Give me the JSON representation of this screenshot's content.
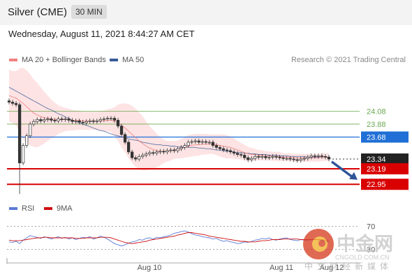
{
  "header": {
    "title": "Silver (CME)",
    "timeframe": "30 MIN"
  },
  "date_label": "Wednesday, August 11, 2021 8:44:27 AM CET",
  "legend": {
    "ma20": {
      "label": "MA 20 + Bollinger Bands",
      "color": "#f08080"
    },
    "ma50": {
      "label": "MA 50",
      "color": "#3a5a98"
    },
    "rsi": {
      "label": "RSI",
      "color": "#5b7bd5"
    },
    "ma9": {
      "label": "9MA",
      "color": "#cc1111"
    }
  },
  "research": "Research © 2021 Trading Central",
  "watermark": {
    "text": "中金网",
    "sub": "CNGOLD.COM.CN",
    "tagline": "中文财经新媒体"
  },
  "chart_data": {
    "type": "candlestick",
    "y_range": [
      22.78,
      24.72
    ],
    "x_labels": [
      "Aug 10",
      "Aug 11",
      "Aug 12"
    ],
    "levels": [
      {
        "label": "24.08",
        "value": 24.08,
        "kind": "target",
        "color": "#6aa84f"
      },
      {
        "label": "23.88",
        "value": 23.88,
        "kind": "target",
        "color": "#6aa84f"
      },
      {
        "label": "23.68",
        "value": 23.68,
        "kind": "pivot",
        "color": "#1f6fd6"
      },
      {
        "label": "23.34",
        "value": 23.34,
        "kind": "last",
        "color": "#333333"
      },
      {
        "label": "23.19",
        "value": 23.19,
        "kind": "support",
        "color": "#d90000"
      },
      {
        "label": "22.95",
        "value": 22.95,
        "kind": "support",
        "color": "#d90000"
      }
    ],
    "close": [
      24.22,
      24.2,
      24.18,
      23.28,
      23.55,
      23.7,
      23.88,
      23.92,
      23.95,
      23.93,
      23.95,
      23.96,
      23.94,
      23.93,
      23.96,
      23.95,
      23.96,
      23.94,
      23.92,
      23.93,
      23.91,
      23.9,
      23.92,
      23.93,
      23.92,
      23.93,
      23.95,
      23.96,
      23.97,
      23.97,
      23.94,
      23.85,
      23.72,
      23.6,
      23.45,
      23.36,
      23.34,
      23.38,
      23.4,
      23.42,
      23.44,
      23.43,
      23.45,
      23.46,
      23.45,
      23.47,
      23.48,
      23.47,
      23.5,
      23.52,
      23.55,
      23.6,
      23.61,
      23.62,
      23.6,
      23.61,
      23.6,
      23.6,
      23.55,
      23.52,
      23.5,
      23.48,
      23.47,
      23.45,
      23.43,
      23.41,
      23.4,
      23.36,
      23.33,
      23.35,
      23.38,
      23.37,
      23.38,
      23.36,
      23.37,
      23.38,
      23.37,
      23.36,
      23.35,
      23.35,
      23.34,
      23.33,
      23.32,
      23.34,
      23.35,
      23.37,
      23.39,
      23.38,
      23.39,
      23.38,
      23.37,
      23.34
    ],
    "ma20": [
      24.32,
      24.3,
      24.28,
      24.24,
      24.2,
      24.15,
      24.1,
      24.05,
      24.02,
      24.0,
      23.98,
      23.97,
      23.96,
      23.95,
      23.95,
      23.95,
      23.95,
      23.95,
      23.94,
      23.94,
      23.94,
      23.93,
      23.93,
      23.93,
      23.93,
      23.93,
      23.93,
      23.93,
      23.94,
      23.94,
      23.92,
      23.9,
      23.86,
      23.82,
      23.77,
      23.72,
      23.67,
      23.62,
      23.58,
      23.54,
      23.51,
      23.49,
      23.47,
      23.46,
      23.46,
      23.46,
      23.47,
      23.48,
      23.49,
      23.5,
      23.52,
      23.54,
      23.55,
      23.56,
      23.56,
      23.57,
      23.57,
      23.57,
      23.57,
      23.56,
      23.55,
      23.54,
      23.53,
      23.52,
      23.5,
      23.48,
      23.46,
      23.44,
      23.42,
      23.41,
      23.41,
      23.4,
      23.4,
      23.39,
      23.39,
      23.38,
      23.38,
      23.38,
      23.37,
      23.37,
      23.37,
      23.36,
      23.36,
      23.36,
      23.36,
      23.36,
      23.36,
      23.36,
      23.36,
      23.37,
      23.37,
      23.37
    ],
    "bb_width": [
      0.4,
      0.4,
      0.42,
      0.5,
      0.55,
      0.56,
      0.55,
      0.52,
      0.5,
      0.45,
      0.4,
      0.35,
      0.3,
      0.26,
      0.22,
      0.2,
      0.18,
      0.17,
      0.16,
      0.15,
      0.15,
      0.14,
      0.14,
      0.14,
      0.14,
      0.14,
      0.15,
      0.16,
      0.17,
      0.18,
      0.22,
      0.28,
      0.34,
      0.38,
      0.42,
      0.44,
      0.45,
      0.44,
      0.42,
      0.38,
      0.34,
      0.3,
      0.26,
      0.22,
      0.18,
      0.16,
      0.15,
      0.14,
      0.14,
      0.15,
      0.16,
      0.17,
      0.17,
      0.17,
      0.17,
      0.16,
      0.16,
      0.15,
      0.15,
      0.16,
      0.17,
      0.18,
      0.18,
      0.17,
      0.16,
      0.14,
      0.13,
      0.12,
      0.11,
      0.1,
      0.09,
      0.08,
      0.08,
      0.07,
      0.07,
      0.07,
      0.07,
      0.07,
      0.06,
      0.06,
      0.06,
      0.06,
      0.06,
      0.06,
      0.06,
      0.06,
      0.06,
      0.06,
      0.06,
      0.06,
      0.06,
      0.06
    ],
    "ma50": [
      24.45,
      24.42,
      24.39,
      24.36,
      24.33,
      24.3,
      24.27,
      24.24,
      24.21,
      24.18,
      24.15,
      24.12,
      24.1,
      24.07,
      24.04,
      24.02,
      23.99,
      23.97,
      23.94,
      23.92,
      23.9,
      23.88,
      23.86,
      23.84,
      23.82,
      23.8,
      23.78,
      23.77,
      23.75,
      23.73,
      23.71,
      23.7,
      23.68,
      23.67,
      23.65,
      23.64,
      23.63,
      23.62,
      23.6,
      23.59,
      23.58,
      23.57,
      23.56,
      23.56,
      23.55,
      23.55,
      23.54,
      23.54,
      23.53,
      23.53,
      23.53,
      23.52,
      23.52,
      23.52,
      23.51,
      23.51,
      23.5,
      23.5,
      23.49,
      23.48,
      23.48,
      23.47,
      23.46,
      23.46,
      23.45,
      23.44,
      23.44,
      23.43,
      23.43,
      23.42,
      23.42,
      23.41,
      23.41,
      23.41,
      23.4,
      23.4,
      23.4,
      23.39,
      23.39,
      23.39,
      23.38,
      23.38,
      23.38,
      23.38,
      23.38,
      23.37,
      23.37,
      23.37,
      23.37,
      23.37,
      23.37,
      23.37
    ],
    "forecast": {
      "from": 23.3,
      "to": 23.02
    },
    "rsi_panel": {
      "y_range": [
        15,
        85
      ],
      "levels": [
        {
          "label": "70",
          "value": 70
        },
        {
          "label": "30",
          "value": 30
        }
      ],
      "rsi": [
        43,
        42,
        44,
        40,
        46,
        50,
        54,
        52,
        51,
        49,
        52,
        50,
        48,
        50,
        52,
        49,
        51,
        48,
        50,
        47,
        49,
        51,
        50,
        52,
        48,
        50,
        53,
        51,
        48,
        44,
        40,
        38,
        36,
        38,
        41,
        43,
        44,
        47,
        46,
        49,
        50,
        48,
        51,
        50,
        52,
        53,
        55,
        58,
        59,
        61,
        62,
        60,
        57,
        55,
        54,
        52,
        51,
        50,
        48,
        49,
        46,
        44,
        45,
        43,
        42,
        40,
        41,
        43,
        42,
        44,
        46,
        47,
        49,
        48,
        50,
        47,
        46,
        48,
        49,
        50,
        47,
        46,
        45,
        47,
        46,
        45,
        47,
        48,
        46,
        45,
        44,
        43
      ],
      "ma9": [
        46,
        45,
        45,
        45,
        46,
        47,
        48,
        49,
        50,
        50,
        51,
        51,
        50,
        50,
        50,
        50,
        50,
        50,
        50,
        49,
        49,
        49,
        50,
        50,
        50,
        50,
        51,
        51,
        51,
        50,
        48,
        46,
        44,
        42,
        41,
        40,
        41,
        42,
        43,
        44,
        46,
        47,
        48,
        49,
        50,
        51,
        52,
        53,
        55,
        56,
        58,
        59,
        59,
        58,
        57,
        56,
        55,
        53,
        52,
        51,
        50,
        49,
        48,
        47,
        46,
        45,
        44,
        44,
        43,
        43,
        43,
        44,
        45,
        45,
        46,
        47,
        47,
        47,
        48,
        48,
        48,
        48,
        48,
        47,
        47,
        47,
        47,
        47,
        47,
        47,
        46,
        46
      ]
    }
  }
}
